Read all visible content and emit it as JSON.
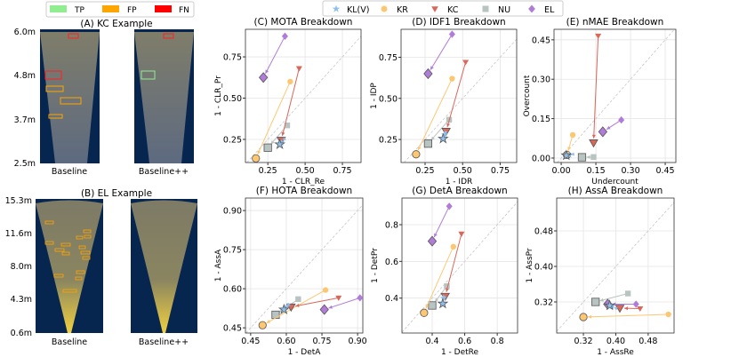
{
  "image_legend": [
    {
      "label": "TP",
      "color": "#90ee90"
    },
    {
      "label": "FP",
      "color": "#ffa500"
    },
    {
      "label": "FN",
      "color": "#ff0000"
    }
  ],
  "panel_a": {
    "title": "(A) KC Example",
    "yticks": [
      "6.0m",
      "4.8m",
      "3.7m",
      "2.5m"
    ],
    "captions": [
      "Baseline",
      "Baseline++"
    ]
  },
  "panel_b": {
    "title": "(B) EL Example",
    "yticks": [
      "15.3m",
      "11.6m",
      "8.0m",
      "4.3m",
      "0.6m"
    ],
    "captions": [
      "Baseline",
      "Baseline++"
    ]
  },
  "legend": [
    {
      "name": "KL(V)",
      "color": "#8fbfea",
      "marker": "star"
    },
    {
      "name": "KR",
      "color": "#fdc772",
      "marker": "circle"
    },
    {
      "name": "KC",
      "color": "#d9675a",
      "marker": "triangle-down"
    },
    {
      "name": "NU",
      "color": "#b8c4c1",
      "marker": "square"
    },
    {
      "name": "EL",
      "color": "#b07cd8",
      "marker": "diamond"
    }
  ],
  "chart_data": [
    {
      "id": "C",
      "type": "scatter",
      "title": "(C) MOTA Breakdown",
      "xlabel": "1 - CLR_Re",
      "ylabel": "1 - CLR_Pr",
      "xlim": [
        0.1,
        0.875
      ],
      "ylim": [
        0.11,
        0.917
      ],
      "xticks": [
        0.25,
        0.5,
        0.75
      ],
      "xtick_labels": [
        "0.25",
        "0.50",
        "0.75"
      ],
      "yticks": [
        0.25,
        0.5,
        0.75
      ],
      "ytick_labels": [
        "0.25",
        "0.50",
        "0.75"
      ],
      "grid": true,
      "arrows": {
        "KL(V)": [
          [
            0.34,
            0.23
          ],
          [
            0.33,
            0.22
          ]
        ],
        "KR": [
          [
            0.4,
            0.6
          ],
          [
            0.17,
            0.135
          ]
        ],
        "KC": [
          [
            0.46,
            0.68
          ],
          [
            0.34,
            0.245
          ]
        ],
        "NU": [
          [
            0.38,
            0.335
          ],
          [
            0.25,
            0.2
          ]
        ],
        "EL": [
          [
            0.365,
            0.875
          ],
          [
            0.22,
            0.625
          ]
        ]
      }
    },
    {
      "id": "D",
      "type": "scatter",
      "title": "(D) IDF1 Breakdown",
      "xlabel": "1 - IDR",
      "ylabel": "1 - IDP",
      "xlim": [
        0.09,
        0.86
      ],
      "ylim": [
        0.11,
        0.92
      ],
      "xticks": [
        0.25,
        0.5,
        0.75
      ],
      "xtick_labels": [
        "0.25",
        "0.50",
        "0.75"
      ],
      "yticks": [
        0.25,
        0.5,
        0.75
      ],
      "ytick_labels": [
        "0.25",
        "0.50",
        "0.75"
      ],
      "grid": true,
      "arrows": {
        "KL(V)": [
          [
            0.38,
            0.28
          ],
          [
            0.37,
            0.255
          ]
        ],
        "KR": [
          [
            0.43,
            0.62
          ],
          [
            0.19,
            0.16
          ]
        ],
        "KC": [
          [
            0.52,
            0.72
          ],
          [
            0.39,
            0.3
          ]
        ],
        "NU": [
          [
            0.41,
            0.37
          ],
          [
            0.27,
            0.225
          ]
        ],
        "EL": [
          [
            0.43,
            0.89
          ],
          [
            0.27,
            0.65
          ]
        ]
      }
    },
    {
      "id": "E",
      "type": "scatter",
      "title": "(E) nMAE Breakdown",
      "xlabel": "Undercount",
      "ylabel": "Overcount",
      "xlim": [
        -0.031,
        0.496
      ],
      "ylim": [
        -0.017,
        0.49
      ],
      "xticks": [
        0,
        0.15,
        0.3,
        0.45
      ],
      "xtick_labels": [
        "0.00",
        "0.15",
        "0.30",
        "0.45"
      ],
      "yticks": [
        0,
        0.15,
        0.3,
        0.45
      ],
      "ytick_labels": [
        "0.00",
        "0.15",
        "0.30",
        "0.45"
      ],
      "grid": true,
      "arrows": {
        "KL(V)": [
          [
            0.035,
            0.012
          ],
          [
            0.022,
            0.01
          ]
        ],
        "KR": [
          [
            0.05,
            0.088
          ],
          [
            0.025,
            0.012
          ]
        ],
        "KC": [
          [
            0.16,
            0.465
          ],
          [
            0.14,
            0.058
          ]
        ],
        "NU": [
          [
            0.14,
            0.004
          ],
          [
            0.09,
            0.003
          ]
        ],
        "EL": [
          [
            0.26,
            0.145
          ],
          [
            0.18,
            0.1
          ]
        ]
      }
    },
    {
      "id": "F",
      "type": "scatter",
      "title": "(F) HOTA Breakdown",
      "xlabel": "1 - DetA",
      "ylabel": "1 - AssA",
      "xlim": [
        0.428,
        0.922
      ],
      "ylim": [
        0.43,
        0.948
      ],
      "xticks": [
        0.45,
        0.6,
        0.75,
        0.9
      ],
      "xtick_labels": [
        "0.45",
        "0.60",
        "0.75",
        "0.90"
      ],
      "yticks": [
        0.45,
        0.6,
        0.75,
        0.9
      ],
      "ytick_labels": [
        "0.45",
        "0.60",
        "0.75",
        "0.90"
      ],
      "grid": true,
      "arrows": {
        "KL(V)": [
          [
            0.6,
            0.53
          ],
          [
            0.59,
            0.52
          ]
        ],
        "KR": [
          [
            0.765,
            0.595
          ],
          [
            0.5,
            0.46
          ]
        ],
        "KC": [
          [
            0.82,
            0.565
          ],
          [
            0.62,
            0.53
          ]
        ],
        "NU": [
          [
            0.65,
            0.56
          ],
          [
            0.555,
            0.5
          ]
        ],
        "EL": [
          [
            0.91,
            0.565
          ],
          [
            0.76,
            0.52
          ]
        ]
      }
    },
    {
      "id": "G",
      "type": "scatter",
      "title": "(G) DetA Breakdown",
      "xlabel": "1 - DetRe",
      "ylabel": "1 - DetPr",
      "xlim": [
        0.214,
        0.925
      ],
      "ylim": [
        0.21,
        0.945
      ],
      "xticks": [
        0.4,
        0.6,
        0.8
      ],
      "xtick_labels": [
        "0.4",
        "0.6",
        "0.8"
      ],
      "yticks": [
        0.4,
        0.6,
        0.8
      ],
      "ytick_labels": [
        "0.4",
        "0.6",
        "0.8"
      ],
      "grid": true,
      "arrows": {
        "KL(V)": [
          [
            0.47,
            0.4
          ],
          [
            0.465,
            0.37
          ]
        ],
        "KR": [
          [
            0.53,
            0.68
          ],
          [
            0.35,
            0.32
          ]
        ],
        "KC": [
          [
            0.58,
            0.75
          ],
          [
            0.48,
            0.41
          ]
        ],
        "NU": [
          [
            0.49,
            0.465
          ],
          [
            0.4,
            0.36
          ]
        ],
        "EL": [
          [
            0.505,
            0.9
          ],
          [
            0.4,
            0.71
          ]
        ]
      }
    },
    {
      "id": "H",
      "type": "scatter",
      "title": "(H) AssA Breakdown",
      "xlabel": "1 - AssRe",
      "ylabel": "1 - AssPr",
      "xlim": [
        0.254,
        0.544
      ],
      "ylim": [
        0.25,
        0.554
      ],
      "xticks": [
        0.32,
        0.4,
        0.48
      ],
      "xtick_labels": [
        "0.32",
        "0.40",
        "0.48"
      ],
      "yticks": [
        0.32,
        0.4,
        0.48
      ],
      "ytick_labels": [
        "0.32",
        "0.40",
        "0.48"
      ],
      "grid": true,
      "arrows": {
        "KL(V)": [
          [
            0.39,
            0.31
          ],
          [
            0.385,
            0.312
          ]
        ],
        "KR": [
          [
            0.53,
            0.292
          ],
          [
            0.32,
            0.286
          ]
        ],
        "KC": [
          [
            0.46,
            0.305
          ],
          [
            0.41,
            0.306
          ]
        ],
        "NU": [
          [
            0.43,
            0.339
          ],
          [
            0.35,
            0.32
          ]
        ],
        "EL": [
          [
            0.45,
            0.315
          ],
          [
            0.38,
            0.315
          ]
        ]
      }
    }
  ]
}
